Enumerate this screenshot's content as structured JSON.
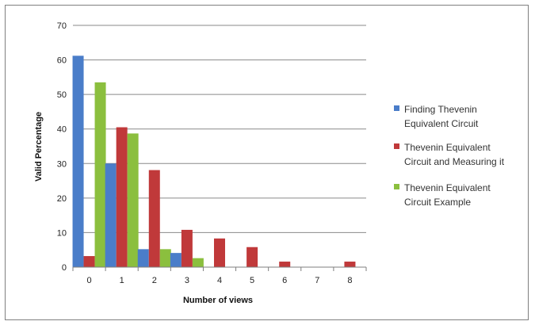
{
  "chart_data": {
    "type": "bar",
    "title": "",
    "xlabel": "Number of views",
    "ylabel": "Valid Percentage",
    "categories": [
      "0",
      "1",
      "2",
      "3",
      "4",
      "5",
      "6",
      "7",
      "8"
    ],
    "ylim": [
      0,
      70
    ],
    "yticks": [
      0,
      10,
      20,
      30,
      40,
      50,
      60,
      70
    ],
    "grid": true,
    "legend_position": "right",
    "series": [
      {
        "name": "Finding Thevenin Equivalent Circuit",
        "legend_lines": [
          "Finding Thevenin",
          "Equivalent Circuit"
        ],
        "color": "#4a7dc9",
        "values": [
          61.2,
          30.0,
          5.2,
          4.1,
          0,
          0,
          0,
          0,
          0
        ]
      },
      {
        "name": "Thevenin Equivalent Circuit and Measuring it",
        "legend_lines": [
          "Thevenin Equivalent",
          "Circuit and Measuring it"
        ],
        "color": "#c0393a",
        "values": [
          3.2,
          40.5,
          28.1,
          10.8,
          8.3,
          5.8,
          1.6,
          0,
          1.6
        ]
      },
      {
        "name": "Thevenin Equivalent Circuit Example",
        "legend_lines": [
          "Thevenin Equivalent",
          "Circuit Example"
        ],
        "color": "#8bbf3e",
        "values": [
          53.5,
          38.7,
          5.2,
          2.6,
          0,
          0,
          0,
          0,
          0
        ]
      }
    ]
  }
}
